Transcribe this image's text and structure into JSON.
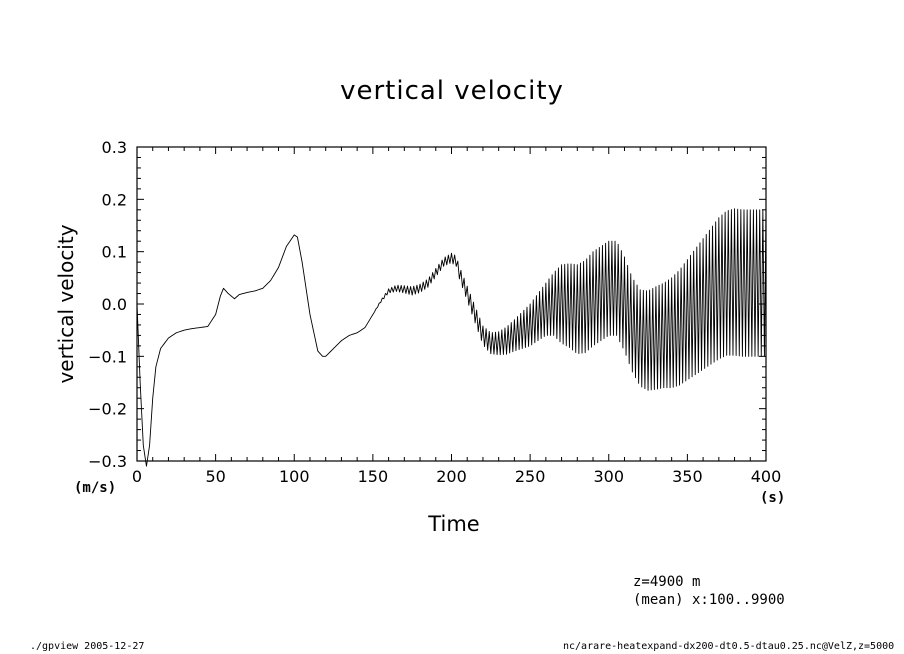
{
  "chart_data": {
    "type": "line",
    "title": "vertical velocity",
    "xlabel": "Time",
    "ylabel": "vertical velocity",
    "x_unit": "(s)",
    "y_unit": "(m/s)",
    "xlim": [
      0,
      400
    ],
    "ylim": [
      -0.3,
      0.3
    ],
    "x_ticks": [
      0,
      50,
      100,
      150,
      200,
      250,
      300,
      350,
      400
    ],
    "x_tick_labels": [
      "0",
      "50",
      "100",
      "150",
      "200",
      "250",
      "300",
      "350",
      "400"
    ],
    "y_ticks": [
      -0.3,
      -0.2,
      -0.1,
      0.0,
      0.1,
      0.2,
      0.3
    ],
    "y_tick_labels": [
      "−0.3",
      "−0.2",
      "−0.1",
      "0.0",
      "0.1",
      "0.2",
      "0.3"
    ],
    "grid": false,
    "oscillation_half_period_s": 1,
    "series": [
      {
        "x": [
          0,
          2,
          4,
          6,
          8,
          10,
          12,
          15,
          20,
          25,
          30,
          35,
          40,
          45,
          50,
          53,
          55,
          58,
          62,
          65,
          70,
          75,
          80,
          85,
          90,
          95,
          100,
          102,
          105,
          110,
          115,
          118,
          120,
          125,
          130,
          135,
          140,
          145,
          150,
          155,
          160,
          165,
          170,
          175,
          180,
          185,
          190,
          195,
          200,
          203,
          205,
          210,
          215,
          220,
          225,
          230,
          235,
          240,
          245,
          250,
          255,
          260,
          265,
          270,
          275,
          280,
          285,
          290,
          295,
          300,
          305,
          310,
          315,
          320,
          325,
          330,
          335,
          340,
          345,
          350,
          355,
          360,
          365,
          370,
          375,
          380,
          385,
          390,
          395,
          400
        ],
        "center": [
          0.0,
          -0.15,
          -0.27,
          -0.31,
          -0.27,
          -0.18,
          -0.12,
          -0.085,
          -0.065,
          -0.055,
          -0.05,
          -0.047,
          -0.045,
          -0.043,
          -0.02,
          0.015,
          0.03,
          0.02,
          0.01,
          0.018,
          0.022,
          0.025,
          0.03,
          0.045,
          0.07,
          0.11,
          0.132,
          0.128,
          0.08,
          -0.02,
          -0.09,
          -0.1,
          -0.1,
          -0.085,
          -0.07,
          -0.06,
          -0.055,
          -0.045,
          -0.02,
          0.005,
          0.025,
          0.03,
          0.028,
          0.025,
          0.03,
          0.04,
          0.06,
          0.08,
          0.088,
          0.082,
          0.06,
          0.02,
          -0.02,
          -0.06,
          -0.075,
          -0.075,
          -0.07,
          -0.06,
          -0.05,
          -0.04,
          -0.025,
          -0.01,
          0.0,
          0.0,
          -0.003,
          -0.01,
          -0.005,
          0.01,
          0.02,
          0.03,
          0.03,
          0.0,
          -0.04,
          -0.065,
          -0.07,
          -0.065,
          -0.06,
          -0.055,
          -0.045,
          -0.03,
          -0.015,
          0.0,
          0.015,
          0.03,
          0.04,
          0.042,
          0.04,
          0.04,
          0.04,
          0.04
        ],
        "amplitude": [
          0,
          0,
          0,
          0,
          0,
          0,
          0,
          0,
          0,
          0,
          0,
          0,
          0,
          0,
          0,
          0,
          0,
          0,
          0,
          0,
          0,
          0,
          0,
          0,
          0,
          0,
          0,
          0,
          0,
          0,
          0,
          0,
          0,
          0,
          0,
          0,
          0,
          0,
          0,
          0.002,
          0.004,
          0.006,
          0.007,
          0.008,
          0.008,
          0.008,
          0.008,
          0.008,
          0.009,
          0.01,
          0.012,
          0.014,
          0.016,
          0.018,
          0.02,
          0.022,
          0.026,
          0.03,
          0.035,
          0.04,
          0.045,
          0.05,
          0.06,
          0.075,
          0.08,
          0.085,
          0.088,
          0.09,
          0.09,
          0.09,
          0.09,
          0.09,
          0.09,
          0.092,
          0.095,
          0.098,
          0.1,
          0.105,
          0.11,
          0.115,
          0.12,
          0.125,
          0.13,
          0.135,
          0.138,
          0.14,
          0.14,
          0.14,
          0.14,
          0.14
        ]
      }
    ]
  },
  "annotations": {
    "note1": "z=4900  m",
    "note2": "(mean) x:100..9900"
  },
  "footer": {
    "left": "./gpview  2005-12-27",
    "right": "nc/arare-heatexpand-dx200-dt0.5-dtau0.25.nc@VelZ,z=5000"
  }
}
